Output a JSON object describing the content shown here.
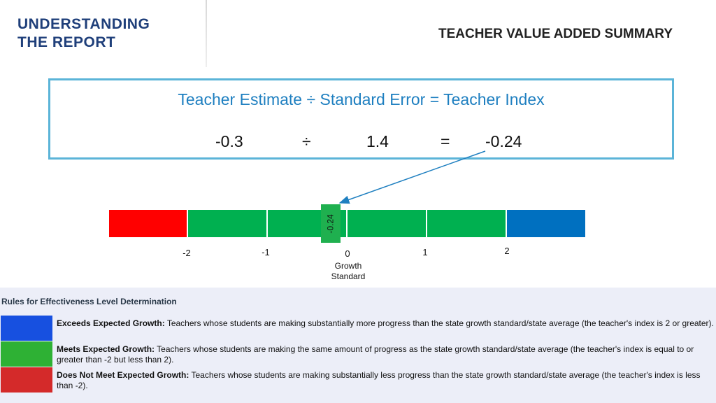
{
  "header": {
    "left_title_line1": "UNDERSTANDING",
    "left_title_line2": "THE REPORT",
    "summary_title": "TEACHER VALUE ADDED SUMMARY"
  },
  "formula": {
    "text": "Teacher Estimate ÷ Standard Error = Teacher Index",
    "estimate": "-0.3",
    "divide_sign": "÷",
    "standard_error": "1.4",
    "equals_sign": "=",
    "index": "-0.24"
  },
  "scale": {
    "marker_label": "-0.24",
    "marker_value": -0.24,
    "ticks": [
      "-2",
      "-1",
      "0",
      "1",
      "2"
    ],
    "growth_label_line1": "Growth",
    "growth_label_line2": "Standard",
    "colors": {
      "low": "#ff0000",
      "mid": "#00b050",
      "high": "#0070c0",
      "marker": "#1fb04f",
      "arrow": "#1e7fc0"
    }
  },
  "rules": {
    "title": "Rules for Effectiveness Level Determination",
    "items": [
      {
        "color": "#1750e0",
        "label": "Exceeds Expected Growth:",
        "text": " Teachers whose students are making substantially more progress than the state growth standard/state average (the teacher's index is 2 or greater)."
      },
      {
        "color": "#2eb134",
        "label": "Meets Expected Growth:",
        "text": " Teachers whose students are making the same amount of progress as the state growth standard/state average (the teacher's index is equal to or greater than -2 but less than 2)."
      },
      {
        "color": "#d42a2a",
        "label": "Does Not Meet Expected Growth:",
        "text": " Teachers whose students are making substantially less progress than the state growth standard/state average (the teacher's index is less than -2)."
      }
    ]
  }
}
